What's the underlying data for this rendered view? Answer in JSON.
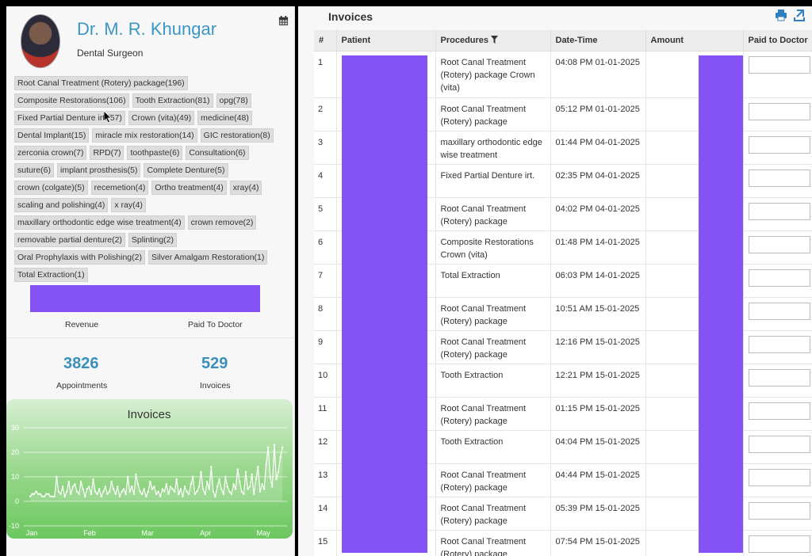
{
  "doctor": {
    "name": "Dr. M. R. Khungar",
    "role": "Dental Surgeon"
  },
  "procedure_tags": [
    "Root Canal Treatment (Rotery) package(196)",
    "Composite Restorations(106)",
    "Tooth Extraction(81)",
    "opg(78)",
    "Fixed Partial Denture irt.(57)",
    "Crown (vita)(49)",
    "medicine(48)",
    "Dental Implant(15)",
    "miracle mix restoration(14)",
    "GIC restoration(8)",
    "zerconia crown(7)",
    "RPD(7)",
    "toothpaste(6)",
    "Consultation(6)",
    "suture(6)",
    "implant prosthesis(5)",
    "Complete Denture(5)",
    "crown (colgate)(5)",
    "recemetion(4)",
    "Ortho treatment(4)",
    "xray(4)",
    "scaling and polishing(4)",
    "x ray(4)",
    "maxillary orthodontic edge wise treatment(4)",
    "crown remove(2)",
    "removable partial denture(2)",
    "Splinting(2)",
    "Oral Prophylaxis with Polishing(2)",
    "Silver Amalgam Restoration(1)",
    "Total Extraction(1)"
  ],
  "revenue": {
    "revenue_label": "Revenue",
    "paid_label": "Paid To Doctor",
    "bar_color": "#8552f5"
  },
  "stats": {
    "appointments_value": "3826",
    "appointments_label": "Appointments",
    "invoices_value": "529",
    "invoices_label": "Invoices"
  },
  "chart_data": {
    "type": "line",
    "title": "Invoices",
    "x_ticks": [
      "Jan",
      "Feb",
      "Mar",
      "Apr",
      "May"
    ],
    "y_ticks": [
      30,
      20,
      10,
      0,
      -10
    ],
    "ylim": [
      -10,
      30
    ],
    "series": [
      {
        "values": [
          2,
          3,
          3,
          4,
          3,
          3,
          2,
          2,
          3,
          3,
          2,
          2,
          2,
          10,
          4,
          3,
          6,
          2,
          4,
          8,
          3,
          6,
          7,
          4,
          3,
          8,
          5,
          2,
          5,
          6,
          3,
          9,
          4,
          3,
          5,
          2,
          4,
          6,
          3,
          4,
          8,
          5,
          3,
          6,
          2,
          4,
          5,
          3,
          10,
          4,
          6,
          3,
          11,
          7,
          4,
          3,
          5,
          2,
          4,
          8,
          5,
          6,
          3,
          4,
          2,
          5,
          4,
          7,
          3,
          6,
          5,
          4,
          9,
          3,
          5,
          2,
          6,
          4,
          3,
          7,
          10,
          3,
          4,
          6,
          12,
          5,
          3,
          8,
          5,
          14,
          4,
          2,
          6,
          9,
          5,
          3,
          10,
          6,
          4,
          3,
          7,
          5,
          13,
          8,
          4,
          3,
          12,
          5,
          6,
          11,
          3,
          9,
          14,
          4,
          7,
          5,
          15,
          22,
          10,
          6,
          23,
          9,
          12,
          18,
          22
        ]
      }
    ],
    "grid": true
  },
  "invoices": {
    "title": "Invoices",
    "columns": [
      "#",
      "Patient",
      "Procedures",
      "Date-Time",
      "Amount",
      "Paid to Doctor"
    ],
    "rows": [
      {
        "no": "1",
        "procedures": "Root Canal Treatment (Rotery) package Crown (vita)",
        "datetime": "04:08 PM 01-01-2025"
      },
      {
        "no": "2",
        "procedures": "Root Canal Treatment (Rotery) package",
        "datetime": "05:12 PM 01-01-2025"
      },
      {
        "no": "3",
        "procedures": "maxillary orthodontic edge wise treatment",
        "datetime": "01:44 PM 04-01-2025"
      },
      {
        "no": "4",
        "procedures": "Fixed Partial Denture irt.",
        "datetime": "02:35 PM 04-01-2025"
      },
      {
        "no": "5",
        "procedures": "Root Canal Treatment (Rotery) package",
        "datetime": "04:02 PM 04-01-2025"
      },
      {
        "no": "6",
        "procedures": "Composite Restorations Crown (vita)",
        "datetime": "01:48 PM 14-01-2025"
      },
      {
        "no": "7",
        "procedures": "Total Extraction",
        "datetime": "06:03 PM 14-01-2025"
      },
      {
        "no": "8",
        "procedures": "Root Canal Treatment (Rotery) package",
        "datetime": "10:51 AM 15-01-2025"
      },
      {
        "no": "9",
        "procedures": "Root Canal Treatment (Rotery) package",
        "datetime": "12:16 PM 15-01-2025"
      },
      {
        "no": "10",
        "procedures": "Tooth Extraction",
        "datetime": "12:21 PM 15-01-2025"
      },
      {
        "no": "11",
        "procedures": "Root Canal Treatment (Rotery) package",
        "datetime": "01:15 PM 15-01-2025"
      },
      {
        "no": "12",
        "procedures": "Tooth Extraction",
        "datetime": "04:04 PM 15-01-2025"
      },
      {
        "no": "13",
        "procedures": "Root Canal Treatment (Rotery) package",
        "datetime": "04:44 PM 15-01-2025"
      },
      {
        "no": "14",
        "procedures": "Root Canal Treatment (Rotery) package",
        "datetime": "05:39 PM 15-01-2025"
      },
      {
        "no": "15",
        "procedures": "Root Canal Treatment (Rotery) package",
        "datetime": "07:54 PM 15-01-2025"
      }
    ],
    "redaction_color": "#8552f5"
  },
  "icons": {
    "calendar": "calendar-icon",
    "filter": "filter-icon",
    "print": "print-icon",
    "export": "export-icon",
    "cursor": "mouse-cursor-icon"
  }
}
